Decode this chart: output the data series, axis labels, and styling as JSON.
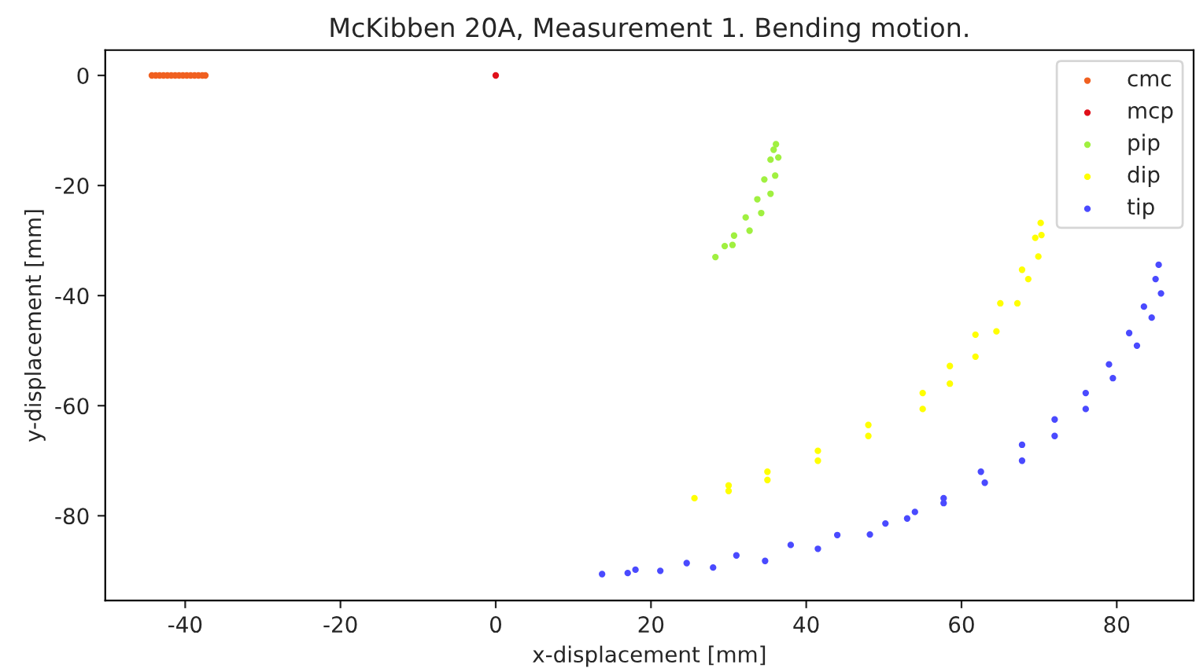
{
  "chart_data": {
    "type": "scatter",
    "title": "McKibben 20A, Measurement 1. Bending motion.",
    "xlabel": "x-displacement [mm]",
    "ylabel": "y-displacement [mm]",
    "xlim": [
      -50.3,
      89.9
    ],
    "ylim": [
      -95.4,
      4.6
    ],
    "xticks": [
      -40,
      -20,
      0,
      20,
      40,
      60,
      80
    ],
    "yticks": [
      -80,
      -60,
      -40,
      -20,
      0
    ],
    "legend": "top right",
    "grid": false,
    "marker": "circle",
    "series": [
      {
        "name": "cmc",
        "color": "#f06020",
        "x": [
          -44.3,
          -43.8,
          -43.3,
          -42.8,
          -42.3,
          -41.8,
          -41.3,
          -40.8,
          -40.3,
          -39.8,
          -39.3,
          -38.8,
          -38.3,
          -37.8,
          -37.4
        ],
        "values": [
          0,
          0,
          0,
          0,
          0,
          0,
          0,
          0,
          0,
          0,
          0,
          0,
          0,
          0,
          0
        ]
      },
      {
        "name": "mcp",
        "color": "#e0101a",
        "x": [
          0
        ],
        "values": [
          0
        ]
      },
      {
        "name": "pip",
        "color": "#a0f040",
        "x": [
          28.3,
          29.5,
          30.7,
          32.2,
          33.7,
          34.6,
          35.4,
          35.8,
          36.1,
          36.4,
          36.0,
          35.4,
          34.2,
          32.7,
          30.5
        ],
        "values": [
          -33.0,
          -31.0,
          -29.1,
          -25.8,
          -22.5,
          -18.9,
          -15.3,
          -13.5,
          -12.5,
          -14.9,
          -18.2,
          -21.5,
          -25.0,
          -28.2,
          -30.8
        ]
      },
      {
        "name": "dip",
        "color": "#ffff00",
        "x": [
          25.6,
          30.0,
          35.0,
          41.5,
          48.0,
          55.0,
          58.5,
          61.8,
          65.0,
          67.8,
          69.5,
          70.2,
          70.3,
          69.9,
          68.6,
          67.2,
          64.5,
          61.8,
          58.5,
          55.0,
          48.0,
          41.5,
          35.0,
          30.0
        ],
        "values": [
          -76.8,
          -74.5,
          -72.0,
          -68.2,
          -63.5,
          -57.7,
          -52.8,
          -47.1,
          -41.4,
          -35.3,
          -29.5,
          -26.8,
          -29.0,
          -32.9,
          -37.0,
          -41.4,
          -46.5,
          -51.1,
          -56.0,
          -60.6,
          -65.5,
          -70.0,
          -73.5,
          -75.5
        ]
      },
      {
        "name": "tip",
        "color": "#4a4aff",
        "x": [
          13.7,
          18.0,
          24.6,
          31.0,
          38.0,
          44.0,
          50.2,
          54.0,
          57.7,
          62.5,
          67.8,
          72.0,
          76.0,
          79.0,
          81.6,
          83.5,
          85.0,
          85.4,
          85.7,
          84.5,
          82.6,
          79.5,
          76.0,
          72.0,
          67.8,
          63.0,
          57.7,
          53.0,
          48.2,
          41.5,
          34.7,
          28.0,
          21.2,
          17.0
        ],
        "values": [
          -90.6,
          -89.8,
          -88.6,
          -87.2,
          -85.3,
          -83.5,
          -81.4,
          -79.3,
          -76.8,
          -72.0,
          -67.1,
          -62.5,
          -57.7,
          -52.5,
          -46.8,
          -42.0,
          -37.0,
          -34.4,
          -39.6,
          -44.0,
          -49.1,
          -55.0,
          -60.6,
          -65.5,
          -70.0,
          -74.0,
          -77.7,
          -80.5,
          -83.4,
          -86.0,
          -88.2,
          -89.4,
          -90.0,
          -90.4
        ]
      }
    ]
  }
}
